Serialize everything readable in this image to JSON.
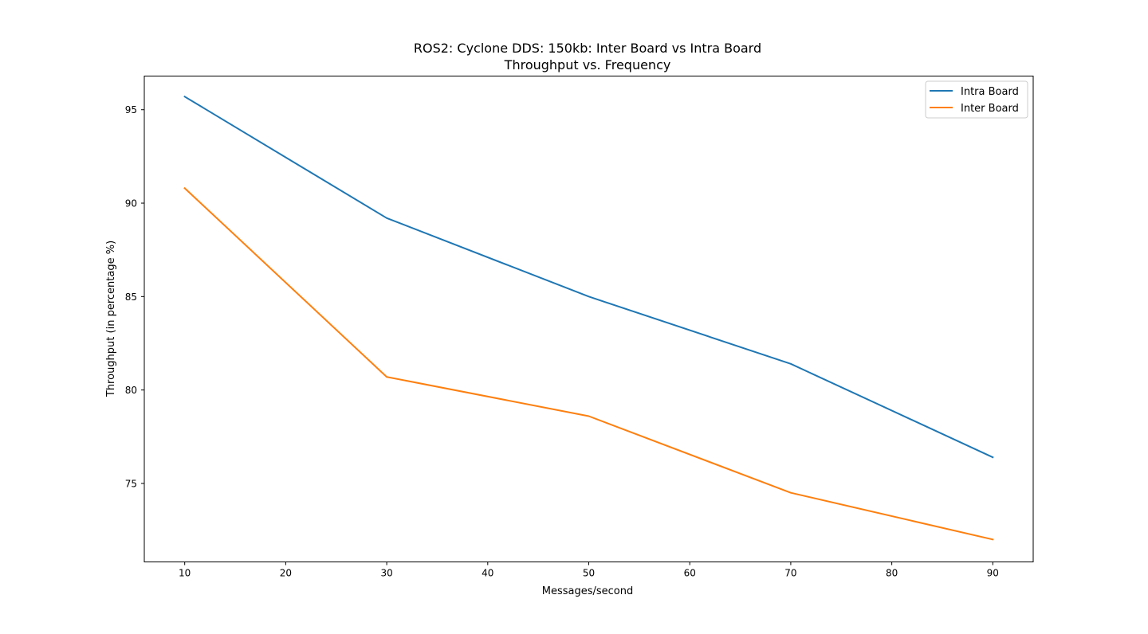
{
  "chart_data": {
    "type": "line",
    "title": "ROS2: Cyclone DDS: 150kb: Inter Board vs Intra Board",
    "subtitle": "Throughput vs. Frequency",
    "xlabel": "Messages/second",
    "ylabel": "Throughput (in percentage %)",
    "x": [
      10,
      30,
      50,
      70,
      90
    ],
    "xlim": [
      6,
      94
    ],
    "ylim": [
      70.8,
      96.8
    ],
    "xticks": [
      10,
      20,
      30,
      40,
      50,
      60,
      70,
      80,
      90
    ],
    "yticks": [
      75,
      80,
      85,
      90,
      95
    ],
    "grid": false,
    "legend_position": "top-right",
    "series": [
      {
        "name": "Intra Board",
        "color": "#1f77b4",
        "values": [
          95.7,
          89.2,
          85.0,
          81.4,
          76.4
        ]
      },
      {
        "name": "Inter Board",
        "color": "#ff7f0e",
        "values": [
          90.8,
          80.7,
          78.6,
          74.5,
          72.0
        ]
      }
    ]
  }
}
